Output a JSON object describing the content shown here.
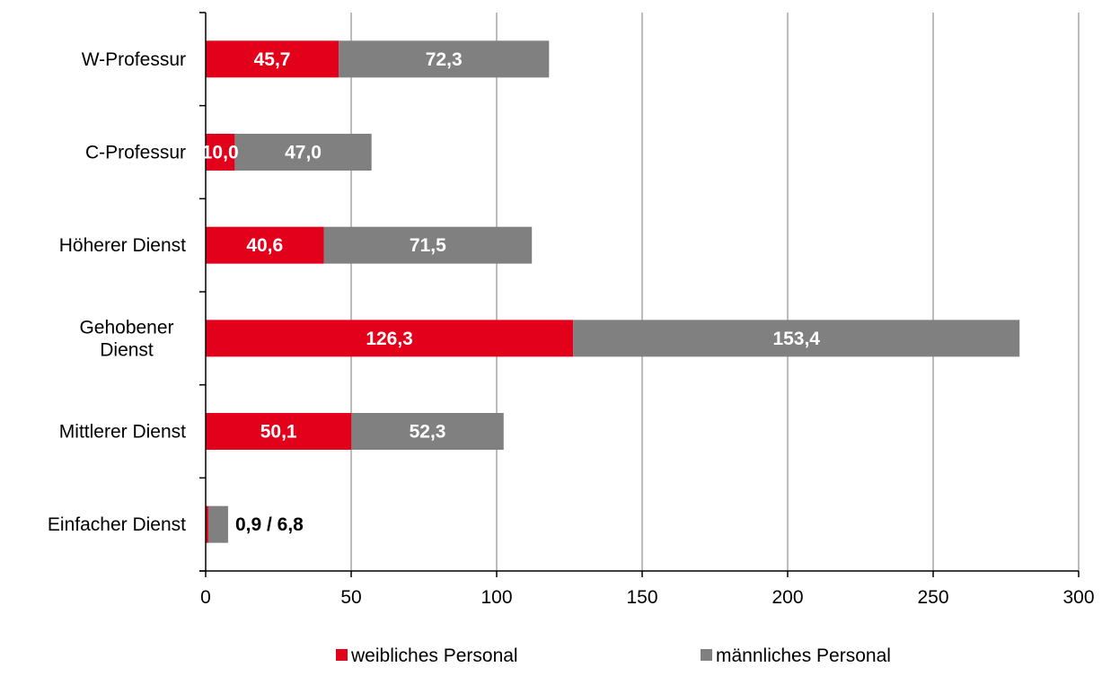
{
  "chart_data": {
    "type": "bar",
    "orientation": "horizontal",
    "stacked": true,
    "categories": [
      "W-Professur",
      "C-Professur",
      "Höherer Dienst",
      "Gehobener Dienst",
      "Mittlerer Dienst",
      "Einfacher Dienst"
    ],
    "category_lines": [
      [
        "W-Professur"
      ],
      [
        "C-Professur"
      ],
      [
        "Höherer Dienst"
      ],
      [
        "Gehobener",
        "Dienst"
      ],
      [
        "Mittlerer Dienst"
      ],
      [
        "Einfacher Dienst"
      ]
    ],
    "series": [
      {
        "name": "weibliches Personal",
        "values": [
          45.7,
          10.0,
          40.6,
          126.3,
          50.1,
          0.9
        ],
        "labels": [
          "45,7",
          "10,0",
          "40,6",
          "126,3",
          "50,1",
          ""
        ],
        "color": "#e2001a"
      },
      {
        "name": "männliches Personal",
        "values": [
          72.3,
          47.0,
          71.5,
          153.4,
          52.3,
          6.8
        ],
        "labels": [
          "72,3",
          "47,0",
          "71,5",
          "153,4",
          "52,3",
          ""
        ],
        "color": "#808080"
      }
    ],
    "outside_labels": [
      null,
      null,
      null,
      null,
      null,
      "0,9 / 6,8"
    ],
    "xlim": [
      0,
      300
    ],
    "xticks": [
      0,
      50,
      100,
      150,
      200,
      250,
      300
    ],
    "xtick_labels": [
      "0",
      "50",
      "100",
      "150",
      "200",
      "250",
      "300"
    ],
    "grid": "vertical",
    "legend": "bottom",
    "title": "",
    "xlabel": "",
    "ylabel": ""
  }
}
